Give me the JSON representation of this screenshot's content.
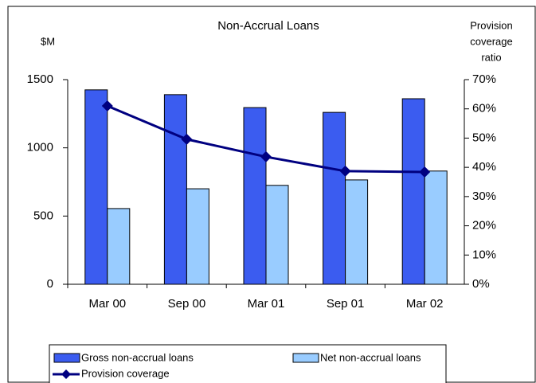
{
  "chart_data": {
    "type": "bar-line",
    "title": "Non-Accrual Loans",
    "y_label": "$M",
    "y2_label": [
      "Provision",
      "coverage",
      "ratio"
    ],
    "categories": [
      "Mar 00",
      "Sep 00",
      "Mar 01",
      "Sep 01",
      "Mar 02"
    ],
    "series": [
      {
        "name": "Gross non-accrual loans",
        "color": "#3b5cf0",
        "type": "bar",
        "values": [
          1425,
          1390,
          1295,
          1260,
          1360
        ]
      },
      {
        "name": "Net non-accrual loans",
        "color": "#99ccff",
        "type": "bar",
        "values": [
          555,
          700,
          725,
          765,
          830
        ]
      },
      {
        "name": "Provision coverage",
        "color": "#000080",
        "type": "line",
        "axis": "y2",
        "values": [
          61,
          49.6,
          43.6,
          38.7,
          38.4
        ]
      }
    ],
    "ylim": [
      0,
      1500
    ],
    "yticks": [
      0,
      500,
      1000,
      1500
    ],
    "y2lim": [
      0,
      70
    ],
    "y2ticks": [
      {
        "value": 0,
        "label": "0%"
      },
      {
        "value": 10,
        "label": "10%"
      },
      {
        "value": 20,
        "label": "20%"
      },
      {
        "value": 30,
        "label": "30%"
      },
      {
        "value": 40,
        "label": "40%"
      },
      {
        "value": 50,
        "label": "50%"
      },
      {
        "value": 60,
        "label": "60%"
      },
      {
        "value": 70,
        "label": "70%"
      }
    ]
  }
}
